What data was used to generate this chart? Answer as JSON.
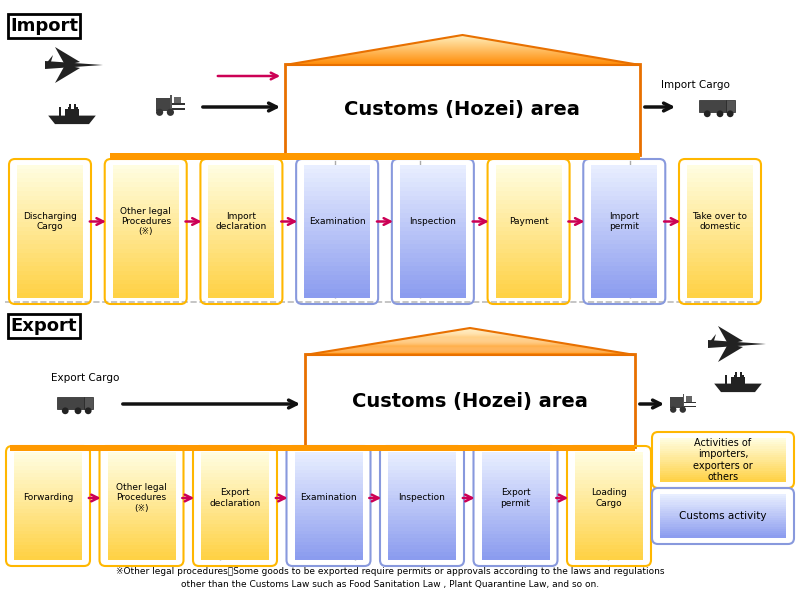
{
  "bg_color": "#ffffff",
  "import_label": "Import",
  "export_label": "Export",
  "customs_label": "Customs (Hozei) area",
  "import_cargo_label": "Import Cargo",
  "export_cargo_label": "Export Cargo",
  "import_steps": [
    {
      "label": "Discharging\nCargo",
      "color": "yellow"
    },
    {
      "label": "Other legal\nProcedures\n(※)",
      "color": "yellow"
    },
    {
      "label": "Import\ndeclaration",
      "color": "yellow"
    },
    {
      "label": "Examination",
      "color": "blue"
    },
    {
      "label": "Inspection",
      "color": "blue"
    },
    {
      "label": "Payment",
      "color": "yellow"
    },
    {
      "label": "Import\npermit",
      "color": "blue"
    },
    {
      "label": "Take over to\ndomestic",
      "color": "yellow"
    }
  ],
  "export_steps": [
    {
      "label": "Forwarding",
      "color": "yellow"
    },
    {
      "label": "Other legal\nProcedures\n(※)",
      "color": "yellow"
    },
    {
      "label": "Export\ndeclaration",
      "color": "yellow"
    },
    {
      "label": "Examination",
      "color": "blue"
    },
    {
      "label": "Inspection",
      "color": "blue"
    },
    {
      "label": "Export\npermit",
      "color": "blue"
    },
    {
      "label": "Loading\nCargo",
      "color": "yellow"
    }
  ],
  "yellow_box_face": "#FFF0A0",
  "yellow_box_edge": "#FFB700",
  "yellow_box_grad_top": "#FFFDE0",
  "yellow_box_grad_bot": "#FFD040",
  "blue_box_face": "#C8D4F8",
  "blue_box_edge": "#8899DD",
  "blue_box_grad_top": "#E8EEFF",
  "blue_box_grad_bot": "#8899EE",
  "arrow_color": "#CC0055",
  "black_arrow_color": "#111111",
  "orange_dark": "#E87000",
  "orange_light": "#FFD090",
  "roof_grad_top": "#FFEEBB",
  "roof_grad_bot": "#FF8800",
  "floor_color": "#FF9900",
  "dashed_color": "#AAAAAA",
  "section_div_color": "#BBBBBB",
  "footnote_line1": "※Other legal procedures：Some goods to be exported require permits or approvals according to the laws and regulations",
  "footnote_line2": "other than the Customs Law such as Food Sanitation Law , Plant Quarantine Law, and so on.",
  "legend_yellow_label": "Activities of\nimporters,\nexporters or\nothers",
  "legend_blue_label": "Customs activity"
}
